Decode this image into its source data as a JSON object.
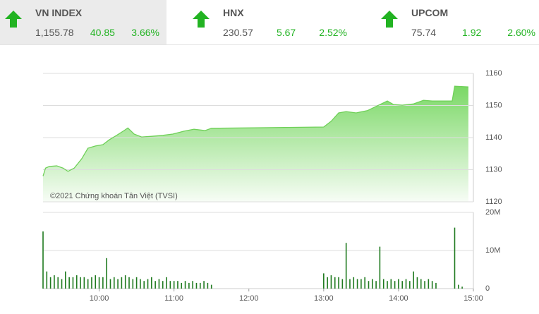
{
  "indices": [
    {
      "name": "VN INDEX",
      "value": "1,155.78",
      "change": "40.85",
      "percent": "3.66%"
    },
    {
      "name": "HNX",
      "value": "230.57",
      "change": "5.67",
      "percent": "2.52%"
    },
    {
      "name": "UPCOM",
      "value": "75.74",
      "change": "1.92",
      "percent": "2.60%"
    }
  ],
  "chart_data": [
    {
      "type": "area",
      "annotation": "©2021 Chứng khoán Tân Việt (TVSI)",
      "color": "#6fd058",
      "x": [
        555,
        557,
        560,
        566,
        571,
        575,
        580,
        586,
        591,
        597,
        603,
        608,
        614,
        620,
        623,
        628,
        634,
        642,
        651,
        659,
        668,
        676,
        685,
        690,
        780,
        786,
        792,
        798,
        806,
        815,
        823,
        831,
        836,
        843,
        852,
        860,
        867,
        871,
        883,
        885,
        896
      ],
      "values": [
        1128,
        1130.5,
        1131,
        1131.2,
        1130.5,
        1129.5,
        1130.5,
        1133.4,
        1136.7,
        1137.4,
        1137.8,
        1139.3,
        1140.7,
        1142.2,
        1143,
        1141.1,
        1140.2,
        1140.4,
        1140.7,
        1141.1,
        1142,
        1142.6,
        1142.2,
        1142.9,
        1143.3,
        1145.1,
        1147.7,
        1148.1,
        1147.7,
        1148.4,
        1149.9,
        1151.4,
        1150.3,
        1150.1,
        1150.5,
        1151.6,
        1151.4,
        1151.4,
        1151.4,
        1156,
        1155.8
      ],
      "xlim": [
        555,
        900
      ],
      "ylim": [
        1120,
        1160
      ],
      "yticks": [
        1120,
        1130,
        1140,
        1150,
        1160
      ],
      "grid": true
    },
    {
      "type": "bar",
      "color": "#1f7a1f",
      "x": [
        555,
        558,
        561,
        564,
        567,
        570,
        573,
        576,
        579,
        582,
        585,
        588,
        591,
        594,
        597,
        600,
        603,
        606,
        609,
        612,
        615,
        618,
        621,
        624,
        627,
        630,
        633,
        636,
        639,
        642,
        645,
        648,
        651,
        654,
        657,
        660,
        663,
        666,
        669,
        672,
        675,
        678,
        681,
        684,
        687,
        690,
        780,
        783,
        786,
        789,
        792,
        795,
        798,
        801,
        804,
        807,
        810,
        813,
        816,
        819,
        822,
        825,
        828,
        831,
        834,
        837,
        840,
        843,
        846,
        849,
        852,
        855,
        858,
        861,
        864,
        867,
        870,
        885,
        888,
        891
      ],
      "values": [
        15000000,
        4500000,
        3000000,
        3500000,
        3000000,
        2500000,
        4500000,
        3000000,
        3000000,
        3500000,
        3000000,
        3000000,
        2500000,
        3000000,
        3500000,
        3000000,
        3000000,
        8000000,
        2500000,
        3000000,
        2500000,
        3000000,
        3500000,
        3000000,
        2500000,
        3000000,
        2500000,
        2000000,
        2500000,
        3000000,
        2000000,
        2500000,
        2000000,
        3000000,
        2000000,
        2000000,
        2000000,
        1500000,
        2000000,
        1500000,
        2000000,
        1500000,
        1500000,
        2000000,
        1500000,
        1000000,
        4000000,
        3000000,
        3500000,
        3000000,
        3000000,
        2500000,
        12000000,
        2500000,
        3000000,
        2500000,
        2500000,
        3000000,
        2000000,
        2500000,
        2000000,
        11000000,
        2500000,
        2000000,
        2500000,
        2000000,
        2500000,
        2000000,
        2500000,
        2000000,
        4500000,
        3000000,
        2500000,
        2000000,
        2500000,
        2000000,
        1500000,
        16000000,
        1000000,
        500000
      ],
      "xlim": [
        555,
        900
      ],
      "ylim": [
        0,
        20000000
      ],
      "yticks": [
        0,
        {
          "value": 10000000,
          "label": "10M"
        },
        {
          "value": 20000000,
          "label": "20M"
        }
      ],
      "xticks": [
        {
          "value": 600,
          "label": "10:00"
        },
        {
          "value": 660,
          "label": "11:00"
        },
        {
          "value": 720,
          "label": "12:00"
        },
        {
          "value": 780,
          "label": "13:00"
        },
        {
          "value": 840,
          "label": "14:00"
        },
        {
          "value": 900,
          "label": "15:00"
        }
      ],
      "grid": true
    }
  ]
}
